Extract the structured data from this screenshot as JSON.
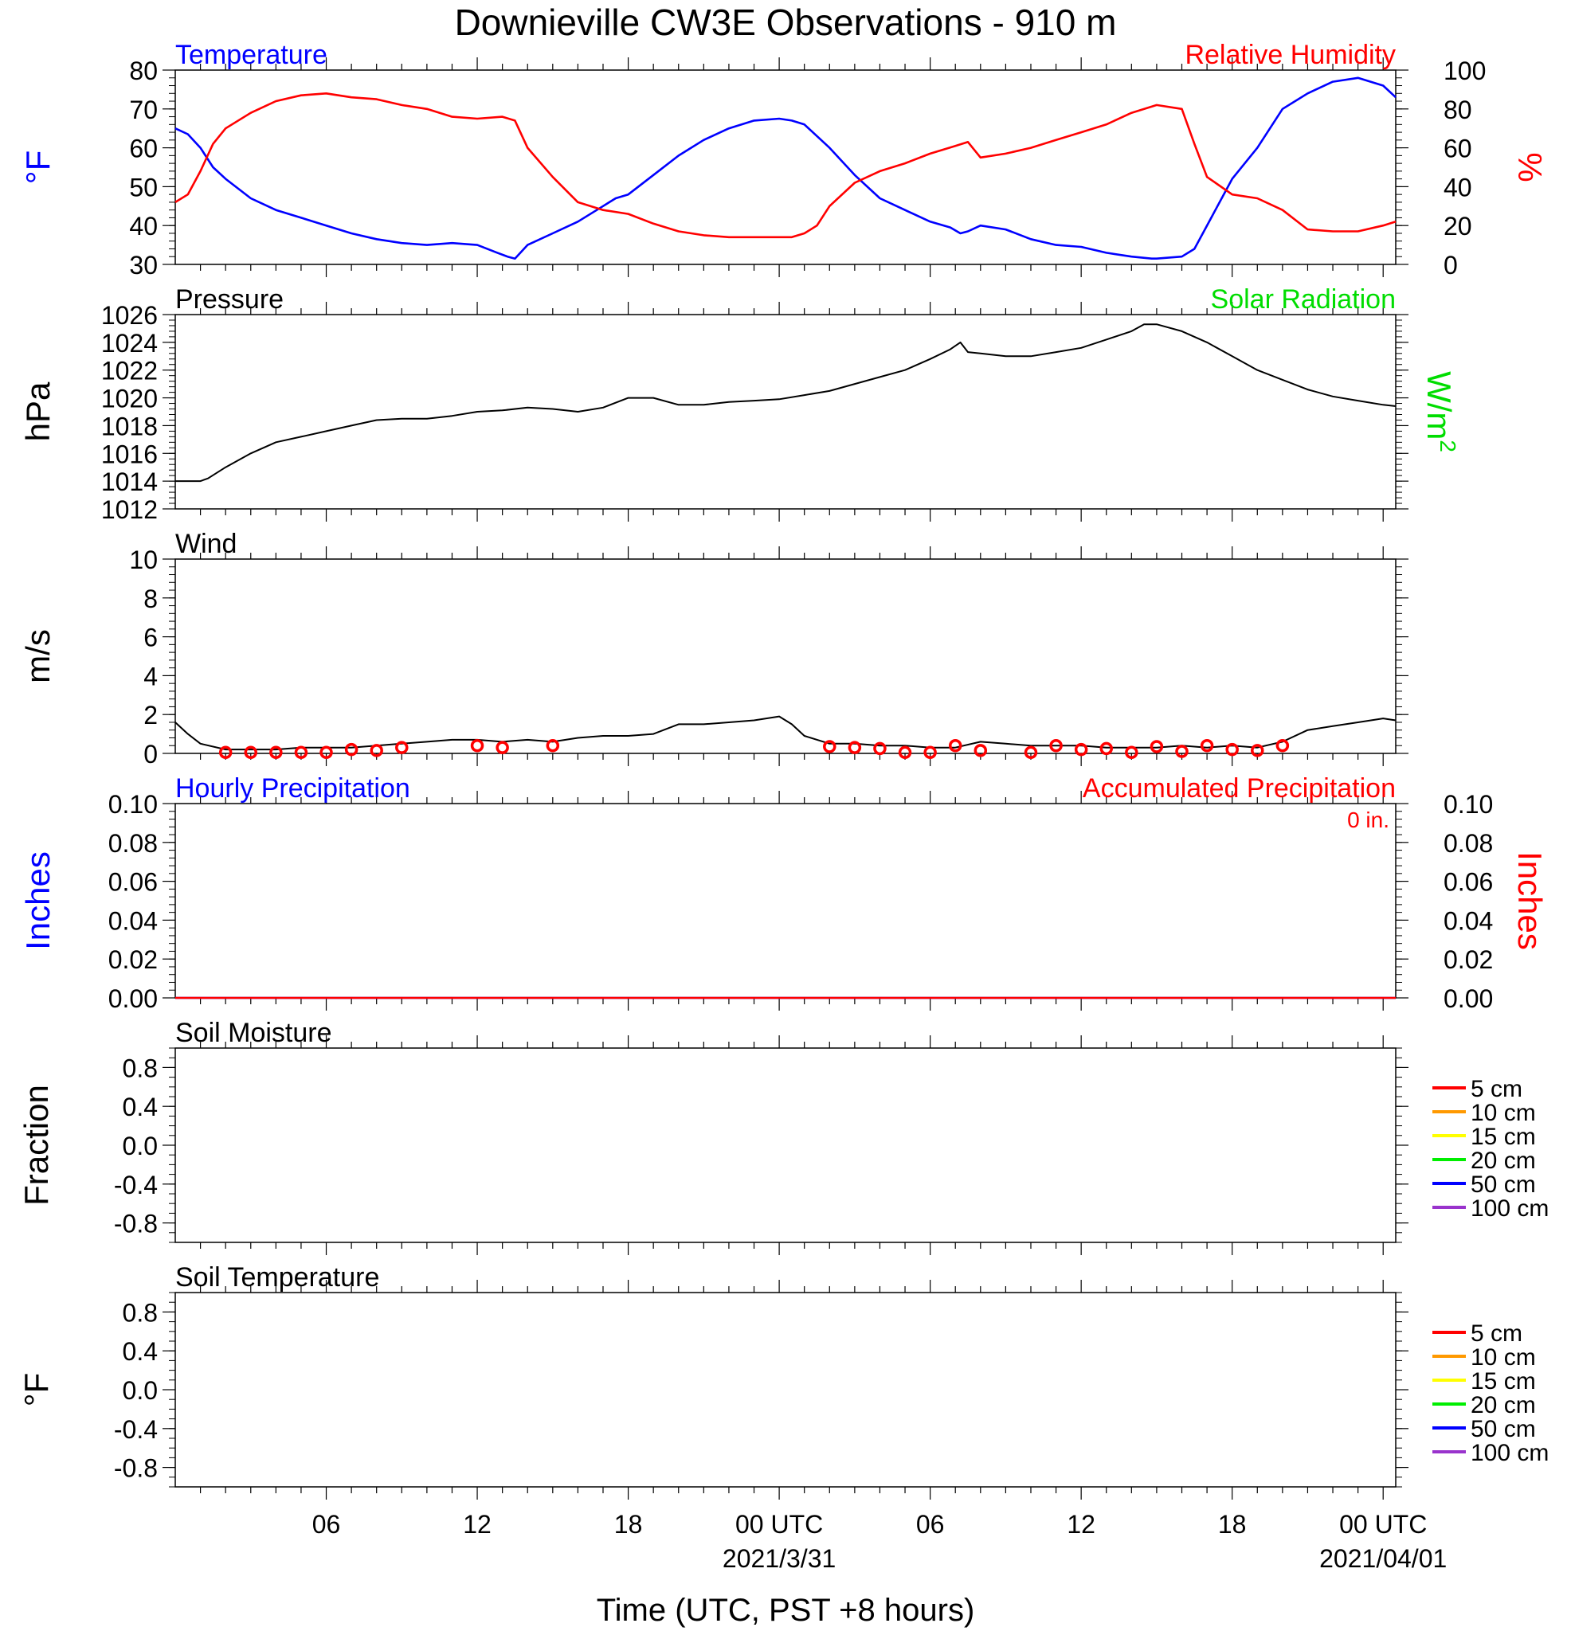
{
  "title": "Downieville CW3E Observations - 910 m",
  "xlabel": "Time (UTC, PST +8 hours)",
  "x_ticks": [
    {
      "hour": 6,
      "label": "06",
      "sub": ""
    },
    {
      "hour": 12,
      "label": "12",
      "sub": ""
    },
    {
      "hour": 18,
      "label": "18",
      "sub": ""
    },
    {
      "hour": 24,
      "label": "00 UTC",
      "sub": "2021/3/31"
    },
    {
      "hour": 30,
      "label": "06",
      "sub": ""
    },
    {
      "hour": 36,
      "label": "12",
      "sub": ""
    },
    {
      "hour": 42,
      "label": "18",
      "sub": ""
    },
    {
      "hour": 48,
      "label": "00 UTC",
      "sub": "2021/04/01"
    }
  ],
  "colors": {
    "temperature": "#0000ff",
    "humidity": "#ff0000",
    "solar": "#00dd00",
    "black": "#000000"
  },
  "chart_data": [
    {
      "type": "line",
      "panel": "temperature-humidity",
      "x_unit": "hours since 2021-03-30 00 UTC",
      "xlim": [
        0,
        48.5
      ],
      "left_title": "Temperature",
      "right_title": "Relative Humidity",
      "ylabel_left": "°F",
      "ylabel_right": "%",
      "ylim_left": [
        30,
        80
      ],
      "ylim_right": [
        0,
        100
      ],
      "yticks_left": [
        30,
        40,
        50,
        60,
        70,
        80
      ],
      "yticks_right": [
        0,
        20,
        40,
        60,
        80,
        100
      ],
      "series": [
        {
          "name": "Temperature",
          "axis": "left",
          "color": "#0000ff",
          "x": [
            0,
            0.5,
            1,
            1.5,
            2,
            3,
            4,
            5,
            6,
            7,
            8,
            9,
            10,
            11,
            12,
            12.8,
            13.2,
            13.5,
            14,
            15,
            16,
            17,
            17.5,
            18,
            19,
            20,
            21,
            22,
            23,
            24,
            24.5,
            25,
            26,
            27,
            28,
            29,
            30,
            30.8,
            31.2,
            31.5,
            32,
            33,
            34,
            35,
            36,
            37,
            38,
            38.8,
            39,
            40,
            40.5,
            41,
            42,
            43,
            44,
            45,
            46,
            47,
            47.5,
            48,
            48.5
          ],
          "y": [
            65,
            63.5,
            60,
            55,
            52,
            47,
            44,
            42,
            40,
            38,
            36.5,
            35.5,
            35,
            35.5,
            35,
            33,
            32,
            31.5,
            35,
            38,
            41,
            45,
            47,
            48,
            53,
            58,
            62,
            65,
            67,
            67.5,
            67,
            66,
            60,
            53,
            47,
            44,
            41,
            39.5,
            38,
            38.5,
            40,
            39,
            36.5,
            35,
            34.5,
            33,
            32,
            31.5,
            31.5,
            32,
            34,
            40,
            52,
            60,
            70,
            74,
            77,
            78,
            77,
            76,
            73
          ]
        },
        {
          "name": "Relative Humidity",
          "axis": "right",
          "color": "#ff0000",
          "x": [
            0,
            0.5,
            1,
            1.5,
            2,
            3,
            4,
            5,
            6,
            7,
            8,
            9,
            10,
            11,
            12,
            13,
            13.5,
            14,
            15,
            16,
            17,
            18,
            19,
            20,
            21,
            22,
            23,
            24,
            24.5,
            25,
            25.5,
            26,
            27,
            28,
            29,
            30,
            31,
            31.5,
            32,
            33,
            34,
            35,
            36,
            37,
            38,
            39,
            40,
            40.5,
            41,
            42,
            43,
            44,
            45,
            46,
            47,
            48,
            48.5
          ],
          "y": [
            32,
            36,
            48,
            62,
            70,
            78,
            84,
            87,
            88,
            86,
            85,
            82,
            80,
            76,
            75,
            76,
            74,
            60,
            45,
            32,
            28,
            26,
            21,
            17,
            15,
            14,
            14,
            14,
            14,
            16,
            20,
            30,
            42,
            48,
            52,
            57,
            61,
            63,
            55,
            57,
            60,
            64,
            68,
            72,
            78,
            82,
            80,
            62,
            45,
            36,
            34,
            28,
            18,
            17,
            17,
            20,
            22
          ]
        }
      ]
    },
    {
      "type": "line",
      "panel": "pressure",
      "left_title": "Pressure",
      "right_title": "Solar Radiation",
      "ylabel_left": "hPa",
      "ylabel_right_base": "W/m",
      "ylabel_right_sup": "2",
      "ylim_left": [
        1012,
        1026
      ],
      "yticks_left": [
        1012,
        1014,
        1016,
        1018,
        1020,
        1022,
        1024,
        1026
      ],
      "series": [
        {
          "name": "Pressure",
          "axis": "left",
          "color": "#000000",
          "x": [
            0,
            0.5,
            1,
            1.3,
            2,
            3,
            4,
            5,
            6,
            7,
            8,
            9,
            10,
            11,
            12,
            13,
            14,
            15,
            16,
            17,
            18,
            19,
            20,
            21,
            22,
            23,
            24,
            25,
            26,
            27,
            28,
            29,
            30,
            30.8,
            31.2,
            31.5,
            32,
            33,
            34,
            35,
            36,
            37,
            38,
            38.5,
            39,
            40,
            41,
            42,
            43,
            44,
            45,
            46,
            47,
            48,
            48.5
          ],
          "y": [
            1014,
            1014,
            1014,
            1014.2,
            1015,
            1016,
            1016.8,
            1017.2,
            1017.6,
            1018,
            1018.4,
            1018.5,
            1018.5,
            1018.7,
            1019,
            1019.1,
            1019.3,
            1019.2,
            1019,
            1019.3,
            1020,
            1020,
            1019.5,
            1019.5,
            1019.7,
            1019.8,
            1019.9,
            1020.2,
            1020.5,
            1021,
            1021.5,
            1022,
            1022.8,
            1023.5,
            1024,
            1023.3,
            1023.2,
            1023,
            1023,
            1023.3,
            1023.6,
            1024.2,
            1024.8,
            1025.3,
            1025.3,
            1024.8,
            1024,
            1023,
            1022,
            1021.3,
            1020.6,
            1020.1,
            1019.8,
            1019.5,
            1019.4
          ]
        }
      ]
    },
    {
      "type": "line",
      "panel": "wind",
      "left_title": "Wind",
      "ylabel_left": "m/s",
      "ylim_left": [
        0,
        10
      ],
      "yticks_left": [
        0,
        2,
        4,
        6,
        8,
        10
      ],
      "series": [
        {
          "name": "Wind speed",
          "axis": "left",
          "color": "#000000",
          "x": [
            0,
            0.5,
            1,
            2,
            3,
            4,
            5,
            6,
            7,
            8,
            9,
            10,
            11,
            12,
            13,
            14,
            15,
            16,
            17,
            18,
            19,
            20,
            21,
            22,
            23,
            24,
            24.5,
            25,
            26,
            27,
            28,
            29,
            30,
            31,
            32,
            33,
            34,
            35,
            36,
            37,
            38,
            39,
            40,
            41,
            42,
            43,
            44,
            45,
            46,
            47,
            48,
            48.5
          ],
          "y": [
            1.6,
            1.0,
            0.5,
            0.2,
            0.2,
            0.2,
            0.3,
            0.3,
            0.3,
            0.4,
            0.5,
            0.6,
            0.7,
            0.7,
            0.6,
            0.7,
            0.6,
            0.8,
            0.9,
            0.9,
            1.0,
            1.5,
            1.5,
            1.6,
            1.7,
            1.9,
            1.5,
            0.9,
            0.5,
            0.5,
            0.4,
            0.4,
            0.3,
            0.3,
            0.6,
            0.5,
            0.4,
            0.4,
            0.4,
            0.3,
            0.3,
            0.3,
            0.4,
            0.3,
            0.4,
            0.3,
            0.6,
            1.2,
            1.4,
            1.6,
            1.8,
            1.7
          ]
        },
        {
          "name": "Hourly wind markers",
          "axis": "left",
          "color": "#ff0000",
          "x": [
            2,
            3,
            4,
            5,
            6,
            7,
            8,
            9,
            12,
            13,
            15,
            26,
            27,
            28,
            29,
            30,
            31,
            32,
            34,
            35,
            36,
            37,
            38,
            39,
            40,
            41,
            42,
            43,
            44
          ],
          "y": [
            0.05,
            0.05,
            0.05,
            0.05,
            0.05,
            0.2,
            0.15,
            0.3,
            0.4,
            0.3,
            0.4,
            0.35,
            0.3,
            0.25,
            0.05,
            0.05,
            0.4,
            0.15,
            0.05,
            0.4,
            0.2,
            0.25,
            0.05,
            0.35,
            0.1,
            0.4,
            0.2,
            0.15,
            0.4
          ]
        }
      ]
    },
    {
      "type": "line",
      "panel": "precipitation",
      "left_title": "Hourly Precipitation",
      "right_title": "Accumulated Precipitation",
      "annotation": "0 in.",
      "ylabel_left": "Inches",
      "ylabel_right": "Inches",
      "ylim_left": [
        0,
        0.1
      ],
      "ylim_right": [
        0,
        0.1
      ],
      "yticks_left": [
        "0.00",
        "0.02",
        "0.04",
        "0.06",
        "0.08",
        "0.10"
      ],
      "yticks_right": [
        "0.00",
        "0.02",
        "0.04",
        "0.06",
        "0.08",
        "0.10"
      ],
      "series": [
        {
          "name": "Hourly Precipitation",
          "axis": "left",
          "color": "#0000ff",
          "x": [
            0,
            48.5
          ],
          "y": [
            0,
            0
          ]
        },
        {
          "name": "Accumulated Precipitation",
          "axis": "right",
          "color": "#ff0000",
          "x": [
            0,
            48.5
          ],
          "y": [
            0,
            0
          ]
        }
      ]
    },
    {
      "type": "line",
      "panel": "soil-moisture",
      "left_title": "Soil Moisture",
      "ylabel_left": "Fraction",
      "ylim_left": [
        -1,
        1
      ],
      "yticks_left": [
        "-0.8",
        "-0.4",
        "0.0",
        "0.4",
        "0.8"
      ],
      "legend": [
        {
          "label": "5 cm",
          "color": "#ff0000"
        },
        {
          "label": "10 cm",
          "color": "#ff9900"
        },
        {
          "label": "15 cm",
          "color": "#ffff00"
        },
        {
          "label": "20 cm",
          "color": "#00ee00"
        },
        {
          "label": "50 cm",
          "color": "#0000ff"
        },
        {
          "label": "100 cm",
          "color": "#9933cc"
        }
      ]
    },
    {
      "type": "line",
      "panel": "soil-temperature",
      "left_title": "Soil Temperature",
      "ylabel_left": "°F",
      "ylim_left": [
        -1,
        1
      ],
      "yticks_left": [
        "-0.8",
        "-0.4",
        "0.0",
        "0.4",
        "0.8"
      ],
      "legend": [
        {
          "label": "5 cm",
          "color": "#ff0000"
        },
        {
          "label": "10 cm",
          "color": "#ff9900"
        },
        {
          "label": "15 cm",
          "color": "#ffff00"
        },
        {
          "label": "20 cm",
          "color": "#00ee00"
        },
        {
          "label": "50 cm",
          "color": "#0000ff"
        },
        {
          "label": "100 cm",
          "color": "#9933cc"
        }
      ]
    }
  ]
}
